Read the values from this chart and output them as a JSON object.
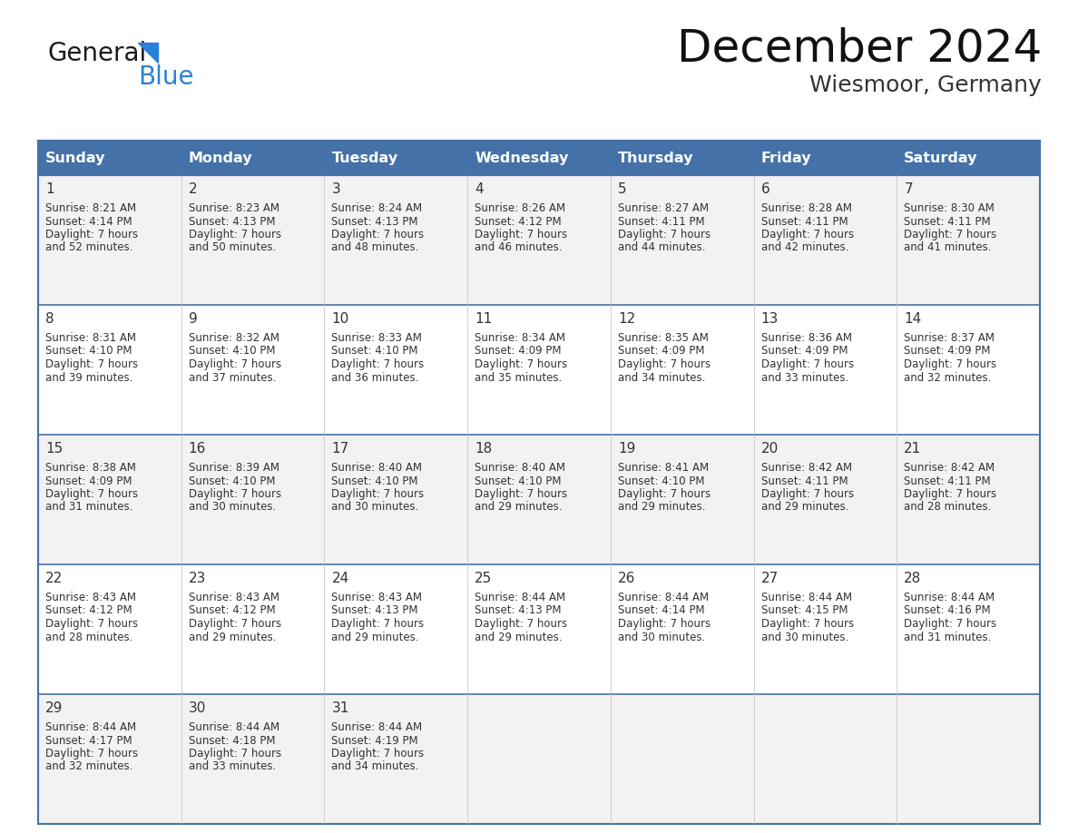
{
  "title": "December 2024",
  "subtitle": "Wiesmoor, Germany",
  "days_of_week": [
    "Sunday",
    "Monday",
    "Tuesday",
    "Wednesday",
    "Thursday",
    "Friday",
    "Saturday"
  ],
  "header_bg": "#4472a8",
  "header_text_color": "#ffffff",
  "cell_bg_odd": "#f2f2f2",
  "cell_bg_even": "#ffffff",
  "row_border_color": "#4472a8",
  "col_border_color": "#c0c0c0",
  "outer_border_color": "#4472a8",
  "day_num_color": "#333333",
  "text_color": "#333333",
  "calendar_data": [
    [
      {
        "day": 1,
        "sunrise": "8:21 AM",
        "sunset": "4:14 PM",
        "daylight": "7 hours",
        "daylight2": "and 52 minutes."
      },
      {
        "day": 2,
        "sunrise": "8:23 AM",
        "sunset": "4:13 PM",
        "daylight": "7 hours",
        "daylight2": "and 50 minutes."
      },
      {
        "day": 3,
        "sunrise": "8:24 AM",
        "sunset": "4:13 PM",
        "daylight": "7 hours",
        "daylight2": "and 48 minutes."
      },
      {
        "day": 4,
        "sunrise": "8:26 AM",
        "sunset": "4:12 PM",
        "daylight": "7 hours",
        "daylight2": "and 46 minutes."
      },
      {
        "day": 5,
        "sunrise": "8:27 AM",
        "sunset": "4:11 PM",
        "daylight": "7 hours",
        "daylight2": "and 44 minutes."
      },
      {
        "day": 6,
        "sunrise": "8:28 AM",
        "sunset": "4:11 PM",
        "daylight": "7 hours",
        "daylight2": "and 42 minutes."
      },
      {
        "day": 7,
        "sunrise": "8:30 AM",
        "sunset": "4:11 PM",
        "daylight": "7 hours",
        "daylight2": "and 41 minutes."
      }
    ],
    [
      {
        "day": 8,
        "sunrise": "8:31 AM",
        "sunset": "4:10 PM",
        "daylight": "7 hours",
        "daylight2": "and 39 minutes."
      },
      {
        "day": 9,
        "sunrise": "8:32 AM",
        "sunset": "4:10 PM",
        "daylight": "7 hours",
        "daylight2": "and 37 minutes."
      },
      {
        "day": 10,
        "sunrise": "8:33 AM",
        "sunset": "4:10 PM",
        "daylight": "7 hours",
        "daylight2": "and 36 minutes."
      },
      {
        "day": 11,
        "sunrise": "8:34 AM",
        "sunset": "4:09 PM",
        "daylight": "7 hours",
        "daylight2": "and 35 minutes."
      },
      {
        "day": 12,
        "sunrise": "8:35 AM",
        "sunset": "4:09 PM",
        "daylight": "7 hours",
        "daylight2": "and 34 minutes."
      },
      {
        "day": 13,
        "sunrise": "8:36 AM",
        "sunset": "4:09 PM",
        "daylight": "7 hours",
        "daylight2": "and 33 minutes."
      },
      {
        "day": 14,
        "sunrise": "8:37 AM",
        "sunset": "4:09 PM",
        "daylight": "7 hours",
        "daylight2": "and 32 minutes."
      }
    ],
    [
      {
        "day": 15,
        "sunrise": "8:38 AM",
        "sunset": "4:09 PM",
        "daylight": "7 hours",
        "daylight2": "and 31 minutes."
      },
      {
        "day": 16,
        "sunrise": "8:39 AM",
        "sunset": "4:10 PM",
        "daylight": "7 hours",
        "daylight2": "and 30 minutes."
      },
      {
        "day": 17,
        "sunrise": "8:40 AM",
        "sunset": "4:10 PM",
        "daylight": "7 hours",
        "daylight2": "and 30 minutes."
      },
      {
        "day": 18,
        "sunrise": "8:40 AM",
        "sunset": "4:10 PM",
        "daylight": "7 hours",
        "daylight2": "and 29 minutes."
      },
      {
        "day": 19,
        "sunrise": "8:41 AM",
        "sunset": "4:10 PM",
        "daylight": "7 hours",
        "daylight2": "and 29 minutes."
      },
      {
        "day": 20,
        "sunrise": "8:42 AM",
        "sunset": "4:11 PM",
        "daylight": "7 hours",
        "daylight2": "and 29 minutes."
      },
      {
        "day": 21,
        "sunrise": "8:42 AM",
        "sunset": "4:11 PM",
        "daylight": "7 hours",
        "daylight2": "and 28 minutes."
      }
    ],
    [
      {
        "day": 22,
        "sunrise": "8:43 AM",
        "sunset": "4:12 PM",
        "daylight": "7 hours",
        "daylight2": "and 28 minutes."
      },
      {
        "day": 23,
        "sunrise": "8:43 AM",
        "sunset": "4:12 PM",
        "daylight": "7 hours",
        "daylight2": "and 29 minutes."
      },
      {
        "day": 24,
        "sunrise": "8:43 AM",
        "sunset": "4:13 PM",
        "daylight": "7 hours",
        "daylight2": "and 29 minutes."
      },
      {
        "day": 25,
        "sunrise": "8:44 AM",
        "sunset": "4:13 PM",
        "daylight": "7 hours",
        "daylight2": "and 29 minutes."
      },
      {
        "day": 26,
        "sunrise": "8:44 AM",
        "sunset": "4:14 PM",
        "daylight": "7 hours",
        "daylight2": "and 30 minutes."
      },
      {
        "day": 27,
        "sunrise": "8:44 AM",
        "sunset": "4:15 PM",
        "daylight": "7 hours",
        "daylight2": "and 30 minutes."
      },
      {
        "day": 28,
        "sunrise": "8:44 AM",
        "sunset": "4:16 PM",
        "daylight": "7 hours",
        "daylight2": "and 31 minutes."
      }
    ],
    [
      {
        "day": 29,
        "sunrise": "8:44 AM",
        "sunset": "4:17 PM",
        "daylight": "7 hours",
        "daylight2": "and 32 minutes."
      },
      {
        "day": 30,
        "sunrise": "8:44 AM",
        "sunset": "4:18 PM",
        "daylight": "7 hours",
        "daylight2": "and 33 minutes."
      },
      {
        "day": 31,
        "sunrise": "8:44 AM",
        "sunset": "4:19 PM",
        "daylight": "7 hours",
        "daylight2": "and 34 minutes."
      },
      null,
      null,
      null,
      null
    ]
  ],
  "logo_text1": "General",
  "logo_text2": "Blue",
  "logo_color1": "#1a1a1a",
  "logo_color2": "#2980d9",
  "logo_triangle_color": "#2980d9",
  "title_fontsize": 36,
  "subtitle_fontsize": 18,
  "header_fontsize": 11.5,
  "day_num_fontsize": 11,
  "info_fontsize": 8.5
}
